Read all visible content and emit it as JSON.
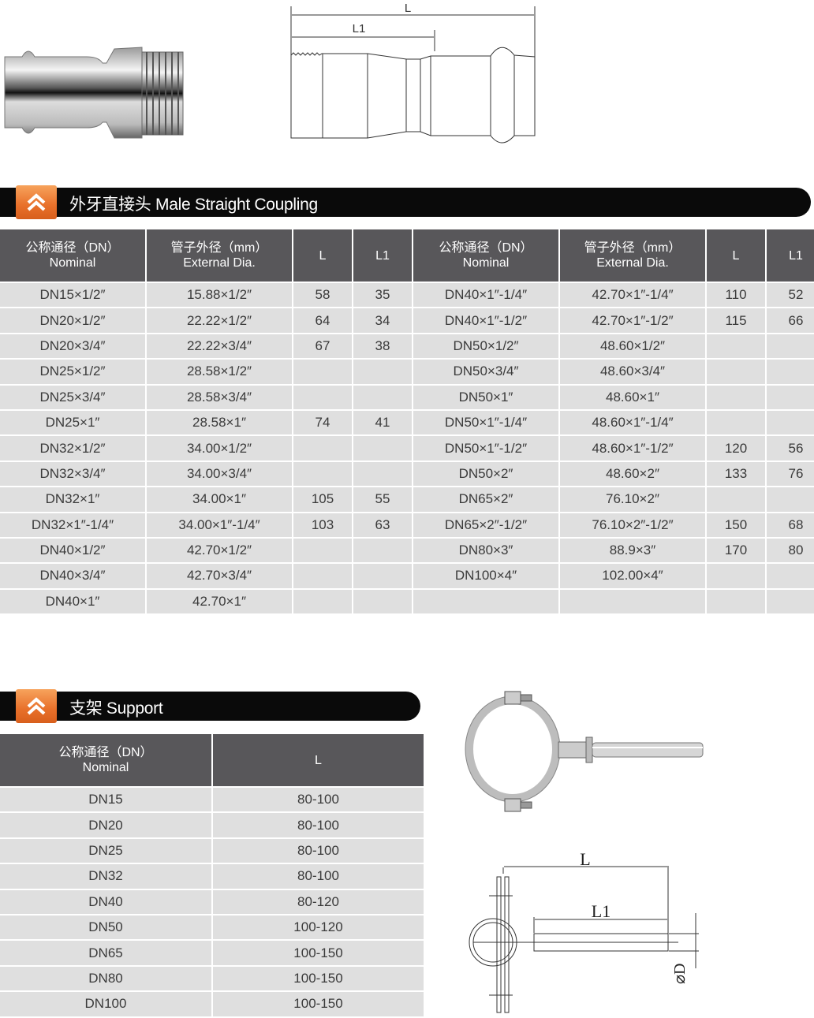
{
  "coupling": {
    "title": "外牙直接头 Male Straight Coupling",
    "drawing_labels": {
      "L": "L",
      "L1": "L1"
    },
    "headers": [
      {
        "cn": "公称通径（DN）",
        "en": "Nominal"
      },
      {
        "cn": "管子外径（mm）",
        "en": "External Dia."
      },
      {
        "cn": "L",
        "en": ""
      },
      {
        "cn": "L1",
        "en": ""
      },
      {
        "cn": "公称通径（DN）",
        "en": "Nominal"
      },
      {
        "cn": "管子外径（mm）",
        "en": "External Dia."
      },
      {
        "cn": "L",
        "en": ""
      },
      {
        "cn": "L1",
        "en": ""
      }
    ],
    "rows": [
      [
        "DN15×1/2″",
        "15.88×1/2″",
        "58",
        "35",
        "DN40×1″-1/4″",
        "42.70×1″-1/4″",
        "110",
        "52"
      ],
      [
        "DN20×1/2″",
        "22.22×1/2″",
        "64",
        "34",
        "DN40×1″-1/2″",
        "42.70×1″-1/2″",
        "115",
        "66"
      ],
      [
        "DN20×3/4″",
        "22.22×3/4″",
        "67",
        "38",
        "DN50×1/2″",
        "48.60×1/2″",
        "",
        ""
      ],
      [
        "DN25×1/2″",
        "28.58×1/2″",
        "",
        "",
        "DN50×3/4″",
        "48.60×3/4″",
        "",
        ""
      ],
      [
        "DN25×3/4″",
        "28.58×3/4″",
        "",
        "",
        "DN50×1″",
        "48.60×1″",
        "",
        ""
      ],
      [
        "DN25×1″",
        "28.58×1″",
        "74",
        "41",
        "DN50×1″-1/4″",
        "48.60×1″-1/4″",
        "",
        ""
      ],
      [
        "DN32×1/2″",
        "34.00×1/2″",
        "",
        "",
        "DN50×1″-1/2″",
        "48.60×1″-1/2″",
        "120",
        "56"
      ],
      [
        "DN32×3/4″",
        "34.00×3/4″",
        "",
        "",
        "DN50×2″",
        "48.60×2″",
        "133",
        "76"
      ],
      [
        "DN32×1″",
        "34.00×1″",
        "105",
        "55",
        "DN65×2″",
        "76.10×2″",
        "",
        ""
      ],
      [
        "DN32×1″-1/4″",
        "34.00×1″-1/4″",
        "103",
        "63",
        "DN65×2″-1/2″",
        "76.10×2″-1/2″",
        "150",
        "68"
      ],
      [
        "DN40×1/2″",
        "42.70×1/2″",
        "",
        "",
        "DN80×3″",
        "88.9×3″",
        "170",
        "80"
      ],
      [
        "DN40×3/4″",
        "42.70×3/4″",
        "",
        "",
        "DN100×4″",
        "102.00×4″",
        "",
        ""
      ],
      [
        "DN40×1″",
        "42.70×1″",
        "",
        "",
        "",
        "",
        "",
        ""
      ]
    ]
  },
  "support": {
    "title": "支架 Support",
    "drawing_labels": {
      "L": "L",
      "L1": "L1",
      "D": "⌀D"
    },
    "headers": [
      {
        "cn": "公称通径（DN）",
        "en": "Nominal"
      },
      {
        "cn": "L",
        "en": ""
      }
    ],
    "rows": [
      [
        "DN15",
        "80-100"
      ],
      [
        "DN20",
        "80-100"
      ],
      [
        "DN25",
        "80-100"
      ],
      [
        "DN32",
        "80-100"
      ],
      [
        "DN40",
        "80-120"
      ],
      [
        "DN50",
        "100-120"
      ],
      [
        "DN65",
        "100-150"
      ],
      [
        "DN80",
        "100-150"
      ],
      [
        "DN100",
        "100-150"
      ]
    ]
  },
  "colors": {
    "banner": "#0a0a0a",
    "accent": "#e8702a",
    "header": "#58575a",
    "cell": "#dfdfdf"
  },
  "icons": {
    "banner_icon": "double-chevron-up-icon"
  }
}
